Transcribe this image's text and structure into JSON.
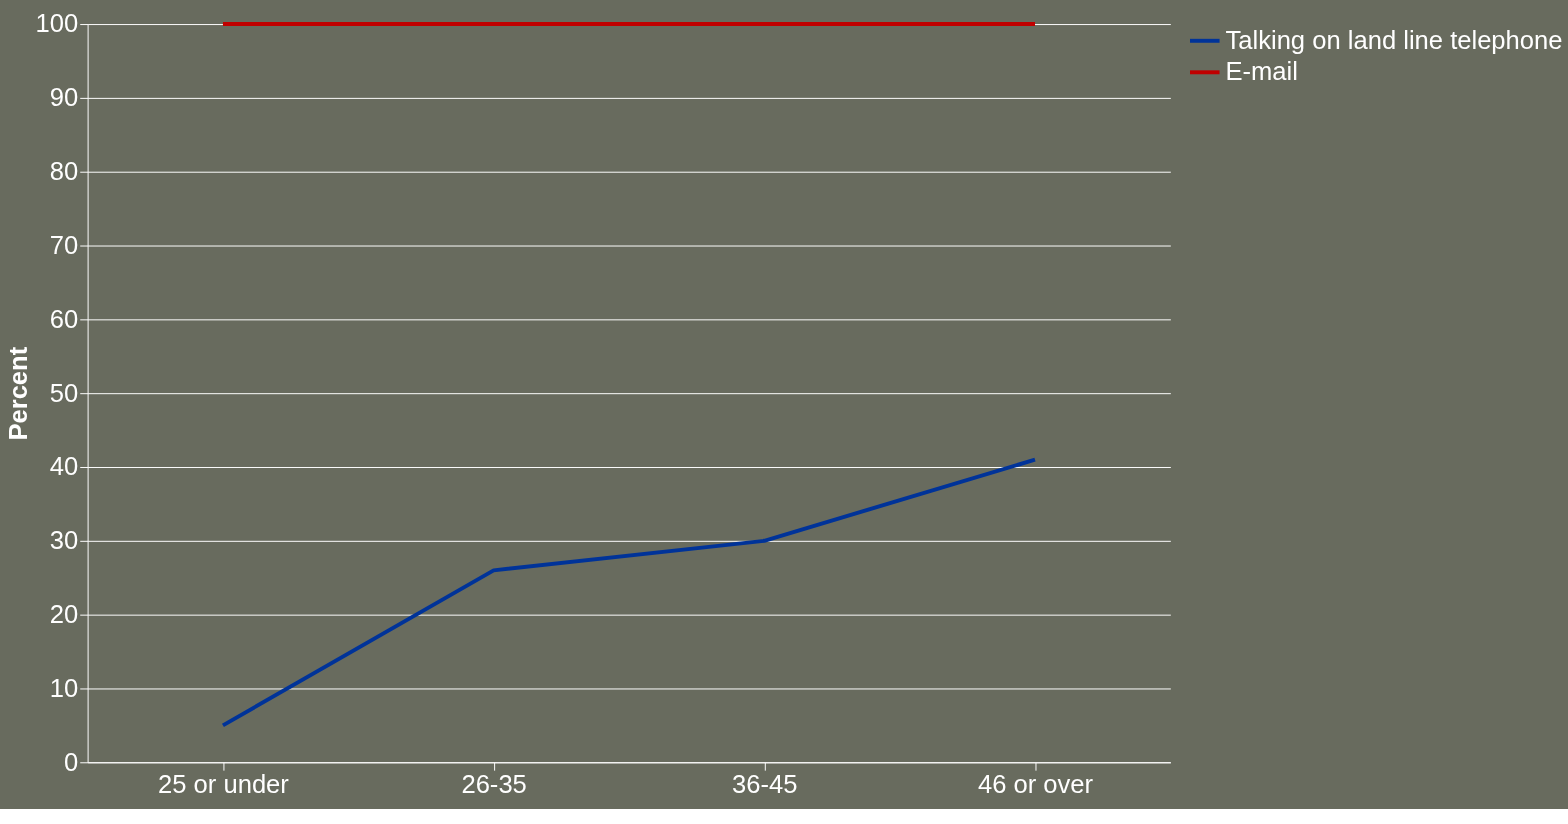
{
  "chart_data": {
    "type": "line",
    "ylabel": "Percent",
    "categories": [
      "25 or under",
      "26-35",
      "36-45",
      "46 or over"
    ],
    "series": [
      {
        "name": "Talking on land line telephone",
        "color": "#003399",
        "values": [
          5,
          26,
          30,
          41
        ]
      },
      {
        "name": "E-mail",
        "color": "#c00000",
        "values": [
          100,
          100,
          100,
          100
        ]
      }
    ],
    "ylim": [
      0,
      100
    ],
    "yticks": [
      0,
      10,
      20,
      30,
      40,
      50,
      60,
      70,
      80,
      90,
      100
    ],
    "grid": "y",
    "legend": "right"
  }
}
